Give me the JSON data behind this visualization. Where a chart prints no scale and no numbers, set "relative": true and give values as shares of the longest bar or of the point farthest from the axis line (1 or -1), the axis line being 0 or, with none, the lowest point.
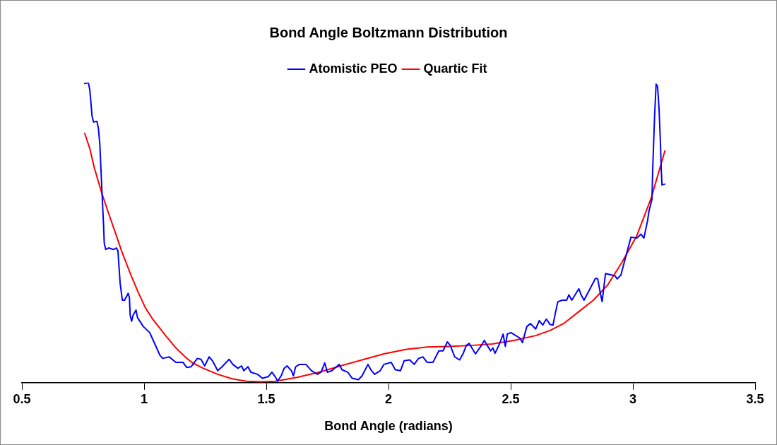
{
  "chart_data": {
    "type": "line",
    "title": "Bond Angle Boltzmann Distribution",
    "xlabel": "Bond Angle (radians)",
    "relative": true,
    "xlim": [
      0.5,
      3.5
    ],
    "xticks": [
      0.5,
      1,
      1.5,
      2,
      2.5,
      3,
      3.5
    ],
    "grid": false,
    "legend": "top",
    "marker": "none",
    "line_style": "solid",
    "series": [
      {
        "name": "Atomistic PEO",
        "color": "#0000ff",
        "x": [
          0.757,
          0.772,
          0.778,
          0.787,
          0.793,
          0.807,
          0.813,
          0.819,
          0.828,
          0.834,
          0.837,
          0.843,
          0.855,
          0.875,
          0.887,
          0.893,
          0.902,
          0.911,
          0.92,
          0.935,
          0.94,
          0.943,
          0.949,
          0.955,
          0.967,
          0.973,
          0.997,
          1.023,
          1.044,
          1.065,
          1.076,
          1.103,
          1.13,
          1.159,
          1.174,
          1.192,
          1.218,
          1.233,
          1.248,
          1.266,
          1.28,
          1.301,
          1.319,
          1.348,
          1.363,
          1.384,
          1.399,
          1.408,
          1.425,
          1.437,
          1.464,
          1.484,
          1.508,
          1.523,
          1.538,
          1.546,
          1.561,
          1.573,
          1.585,
          1.603,
          1.611,
          1.62,
          1.635,
          1.662,
          1.685,
          1.709,
          1.724,
          1.739,
          1.75,
          1.768,
          1.798,
          1.81,
          1.833,
          1.851,
          1.877,
          1.892,
          1.916,
          1.928,
          1.943,
          1.966,
          1.981,
          2.011,
          2.028,
          2.049,
          2.064,
          2.087,
          2.105,
          2.123,
          2.141,
          2.158,
          2.182,
          2.206,
          2.223,
          2.241,
          2.253,
          2.271,
          2.291,
          2.306,
          2.318,
          2.33,
          2.345,
          2.356,
          2.38,
          2.392,
          2.404,
          2.418,
          2.427,
          2.436,
          2.454,
          2.469,
          2.478,
          2.486,
          2.501,
          2.537,
          2.548,
          2.566,
          2.581,
          2.602,
          2.617,
          2.631,
          2.646,
          2.661,
          2.673,
          2.684,
          2.693,
          2.711,
          2.729,
          2.738,
          2.75,
          2.779,
          2.788,
          2.8,
          2.847,
          2.856,
          2.865,
          2.874,
          2.888,
          2.927,
          2.936,
          2.951,
          2.977,
          2.992,
          3.016,
          3.033,
          3.045,
          3.06,
          3.066,
          3.078,
          3.081,
          3.089,
          3.095,
          3.101,
          3.107,
          3.113,
          3.116,
          3.119,
          3.131
        ],
        "values": [
          0.997,
          1.0,
          0.975,
          0.889,
          0.869,
          0.871,
          0.848,
          0.793,
          0.629,
          0.528,
          0.465,
          0.444,
          0.449,
          0.444,
          0.449,
          0.439,
          0.331,
          0.275,
          0.275,
          0.298,
          0.283,
          0.225,
          0.205,
          0.225,
          0.242,
          0.217,
          0.187,
          0.167,
          0.129,
          0.091,
          0.081,
          0.086,
          0.068,
          0.068,
          0.051,
          0.053,
          0.081,
          0.078,
          0.056,
          0.086,
          0.073,
          0.04,
          0.053,
          0.078,
          0.061,
          0.048,
          0.056,
          0.04,
          0.053,
          0.035,
          0.028,
          0.015,
          0.02,
          0.035,
          0.018,
          0.005,
          0.023,
          0.048,
          0.056,
          0.04,
          0.023,
          0.053,
          0.061,
          0.061,
          0.04,
          0.028,
          0.035,
          0.066,
          0.035,
          0.04,
          0.061,
          0.043,
          0.035,
          0.015,
          0.01,
          0.023,
          0.061,
          0.043,
          0.028,
          0.04,
          0.061,
          0.068,
          0.043,
          0.04,
          0.073,
          0.076,
          0.061,
          0.081,
          0.086,
          0.068,
          0.068,
          0.106,
          0.106,
          0.136,
          0.124,
          0.086,
          0.076,
          0.098,
          0.124,
          0.131,
          0.111,
          0.096,
          0.124,
          0.141,
          0.124,
          0.106,
          0.116,
          0.098,
          0.129,
          0.162,
          0.121,
          0.162,
          0.167,
          0.149,
          0.134,
          0.187,
          0.197,
          0.179,
          0.207,
          0.192,
          0.212,
          0.194,
          0.192,
          0.237,
          0.27,
          0.275,
          0.275,
          0.293,
          0.275,
          0.313,
          0.293,
          0.275,
          0.348,
          0.346,
          0.306,
          0.27,
          0.364,
          0.356,
          0.346,
          0.359,
          0.439,
          0.485,
          0.482,
          0.495,
          0.482,
          0.54,
          0.573,
          0.611,
          0.71,
          0.894,
          0.995,
          0.987,
          0.912,
          0.793,
          0.71,
          0.659,
          0.662
        ]
      },
      {
        "name": "Quartic Fit",
        "color": "#ff0000",
        "x": [
          0.757,
          0.778,
          0.796,
          0.828,
          0.849,
          0.881,
          0.908,
          0.946,
          0.976,
          1.005,
          1.035,
          1.088,
          1.13,
          1.168,
          1.198,
          1.242,
          1.301,
          1.36,
          1.419,
          1.478,
          1.538,
          1.626,
          1.715,
          1.804,
          1.892,
          1.981,
          2.07,
          2.158,
          2.247,
          2.336,
          2.424,
          2.513,
          2.602,
          2.661,
          2.72,
          2.779,
          2.838,
          2.897,
          2.956,
          3.016,
          3.075,
          3.131
        ],
        "values": [
          0.831,
          0.78,
          0.717,
          0.629,
          0.578,
          0.503,
          0.439,
          0.359,
          0.301,
          0.25,
          0.212,
          0.157,
          0.116,
          0.086,
          0.066,
          0.048,
          0.028,
          0.013,
          0.005,
          0.003,
          0.005,
          0.018,
          0.035,
          0.056,
          0.076,
          0.096,
          0.111,
          0.119,
          0.121,
          0.124,
          0.129,
          0.141,
          0.157,
          0.174,
          0.199,
          0.237,
          0.275,
          0.326,
          0.402,
          0.49,
          0.616,
          0.773
        ]
      }
    ]
  }
}
